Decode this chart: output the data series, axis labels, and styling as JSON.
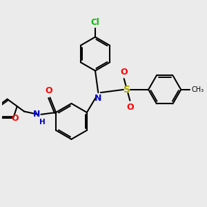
{
  "bg_color": "#ebebeb",
  "bond_color": "#000000",
  "atom_colors": {
    "N": "#0000cc",
    "O": "#ff0000",
    "S": "#aaaa00",
    "Cl": "#00bb00",
    "H": "#0000aa"
  }
}
